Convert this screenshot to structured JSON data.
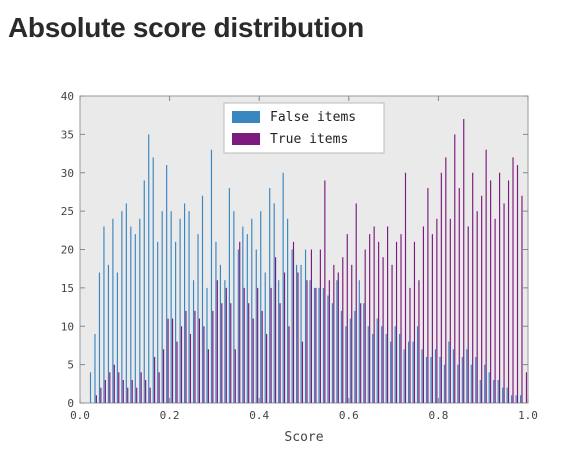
{
  "page": {
    "title": "Absolute score distribution"
  },
  "chart_data": {
    "type": "bar",
    "title": "",
    "xlabel": "Score",
    "ylabel": "",
    "xlim": [
      0.0,
      1.0
    ],
    "ylim": [
      0,
      40
    ],
    "xticks": [
      "0.0",
      "0.2",
      "0.4",
      "0.6",
      "0.8",
      "1.0"
    ],
    "yticks": [
      "0",
      "5",
      "10",
      "15",
      "20",
      "25",
      "30",
      "35",
      "40"
    ],
    "grid": false,
    "legend_position": "top-center",
    "bin_width": 0.01,
    "x": [
      0.005,
      0.015,
      0.025,
      0.035,
      0.045,
      0.055,
      0.065,
      0.075,
      0.085,
      0.095,
      0.105,
      0.115,
      0.125,
      0.135,
      0.145,
      0.155,
      0.165,
      0.175,
      0.185,
      0.195,
      0.205,
      0.215,
      0.225,
      0.235,
      0.245,
      0.255,
      0.265,
      0.275,
      0.285,
      0.295,
      0.305,
      0.315,
      0.325,
      0.335,
      0.345,
      0.355,
      0.365,
      0.375,
      0.385,
      0.395,
      0.405,
      0.415,
      0.425,
      0.435,
      0.445,
      0.455,
      0.465,
      0.475,
      0.485,
      0.495,
      0.505,
      0.515,
      0.525,
      0.535,
      0.545,
      0.555,
      0.565,
      0.575,
      0.585,
      0.595,
      0.605,
      0.615,
      0.625,
      0.635,
      0.645,
      0.655,
      0.665,
      0.675,
      0.685,
      0.695,
      0.705,
      0.715,
      0.725,
      0.735,
      0.745,
      0.755,
      0.765,
      0.775,
      0.785,
      0.795,
      0.805,
      0.815,
      0.825,
      0.835,
      0.845,
      0.855,
      0.865,
      0.875,
      0.885,
      0.895,
      0.905,
      0.915,
      0.925,
      0.935,
      0.945,
      0.955,
      0.965,
      0.975,
      0.985,
      0.995
    ],
    "series": [
      {
        "name": "False items",
        "color": "#3a86c1",
        "values": [
          0,
          0,
          4,
          9,
          17,
          23,
          18,
          24,
          17,
          25,
          26,
          23,
          22,
          24,
          29,
          35,
          32,
          21,
          25,
          31,
          25,
          21,
          24,
          26,
          25,
          16,
          22,
          27,
          15,
          33,
          21,
          18,
          16,
          28,
          25,
          20,
          23,
          22,
          24,
          20,
          25,
          17,
          28,
          26,
          16,
          30,
          24,
          20,
          18,
          18,
          20,
          16,
          15,
          15,
          15,
          14,
          13,
          16,
          12,
          10,
          11,
          12,
          16,
          13,
          10,
          9,
          11,
          10,
          9,
          8,
          10,
          9,
          7,
          8,
          8,
          10,
          7,
          6,
          6,
          7,
          6,
          5,
          8,
          7,
          5,
          6,
          7,
          5,
          6,
          3,
          5,
          4,
          3,
          3,
          2,
          2,
          1,
          1,
          1,
          0
        ]
      },
      {
        "name": "True items",
        "color": "#7d1a7d",
        "values": [
          0,
          0,
          0,
          1,
          2,
          3,
          4,
          5,
          4,
          3,
          2,
          3,
          2,
          4,
          3,
          2,
          6,
          4,
          7,
          11,
          11,
          8,
          10,
          12,
          9,
          12,
          11,
          10,
          7,
          12,
          16,
          13,
          15,
          13,
          7,
          21,
          15,
          13,
          11,
          15,
          12,
          9,
          15,
          19,
          13,
          17,
          10,
          21,
          17,
          8,
          16,
          20,
          15,
          20,
          29,
          16,
          18,
          17,
          19,
          22,
          18,
          26,
          13,
          20,
          22,
          23,
          21,
          19,
          23,
          18,
          21,
          22,
          30,
          15,
          21,
          16,
          23,
          28,
          22,
          24,
          30,
          32,
          24,
          35,
          28,
          37,
          23,
          30,
          25,
          27,
          33,
          29,
          24,
          30,
          26,
          29,
          32,
          31,
          27,
          4
        ]
      }
    ]
  }
}
